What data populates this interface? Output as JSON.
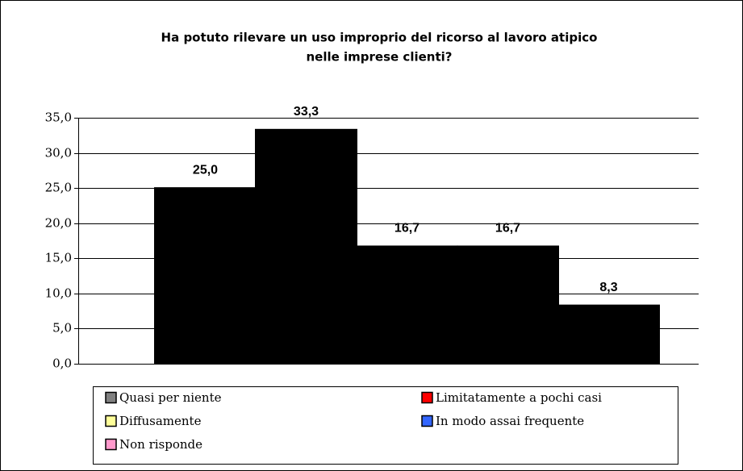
{
  "chart_data": {
    "type": "bar",
    "title": [
      "Ha potuto rilevare un uso improprio del ricorso al lavoro atipico",
      "nelle imprese clienti?"
    ],
    "series": [
      {
        "name": "Quasi per niente",
        "color": "#808080",
        "values": [
          25.0
        ],
        "value_labels": [
          "25,0"
        ]
      },
      {
        "name": "Limitatamente a pochi casi",
        "color": "#ff0000",
        "values": [
          33.3
        ],
        "value_labels": [
          "33,3"
        ]
      },
      {
        "name": "Diffusamente",
        "color": "#ffff99",
        "values": [
          16.7
        ],
        "value_labels": [
          "16,7"
        ]
      },
      {
        "name": "In modo assai frequente",
        "color": "#3366ff",
        "values": [
          16.7
        ],
        "value_labels": [
          "16,7"
        ]
      },
      {
        "name": "Non risponde",
        "color": "#ff99cc",
        "values": [
          8.3
        ],
        "value_labels": [
          "8,3"
        ]
      }
    ],
    "ylim": [
      0,
      35
    ],
    "yticks": [
      {
        "value": 0,
        "label": "0,0"
      },
      {
        "value": 5,
        "label": "5,0"
      },
      {
        "value": 10,
        "label": "10,0"
      },
      {
        "value": 15,
        "label": "15,0"
      },
      {
        "value": 20,
        "label": "20,0"
      },
      {
        "value": 25,
        "label": "25,0"
      },
      {
        "value": 30,
        "label": "30,0"
      },
      {
        "value": 35,
        "label": "35,0"
      }
    ],
    "grid": true,
    "legend": "bottom"
  }
}
